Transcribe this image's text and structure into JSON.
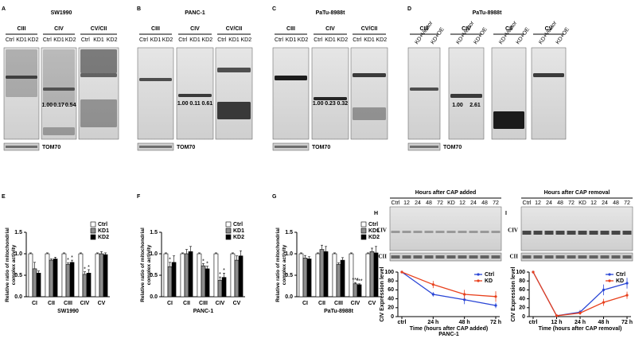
{
  "panels": [
    {
      "letter": "A",
      "title": "SW1990",
      "groups": [
        "CIII",
        "CIV",
        "CV/CII"
      ],
      "lanes": [
        "Ctrl",
        "KD1",
        "KD2"
      ],
      "ratios": [
        "1.00",
        "0.17",
        "0.54"
      ],
      "loading": "TOM70"
    },
    {
      "letter": "B",
      "title": "PANC-1",
      "groups": [
        "CIII",
        "CIV",
        "CV/CII"
      ],
      "lanes": [
        "Ctrl",
        "KD1",
        "KD2"
      ],
      "ratios": [
        "1.00",
        "0.11",
        "0.61"
      ],
      "loading": "TOM70"
    },
    {
      "letter": "C",
      "title": "PaTu-8988t",
      "groups": [
        "CIII",
        "CIV",
        "CV/CII"
      ],
      "lanes": [
        "Ctrl",
        "KD1",
        "KD2"
      ],
      "ratios": [
        "1.00",
        "0.23",
        "0.32"
      ],
      "loading": "TOM70"
    },
    {
      "letter": "D",
      "title": "PaTu-8988t",
      "groups": [
        "CIII",
        "CIV",
        "CII",
        "CV"
      ],
      "lanes": [
        "KD+Vector",
        "KD+OE"
      ],
      "ratios": [
        "1.00",
        "2.61"
      ],
      "loading": "TOM70"
    }
  ],
  "gels": [
    {
      "letter": "H",
      "title": "Hours after CAP added",
      "lanes": [
        "Ctrl",
        "12",
        "24",
        "48",
        "72",
        "KD",
        "12",
        "24",
        "48",
        "72"
      ],
      "bands": [
        "CIV",
        "CII"
      ]
    },
    {
      "letter": "I",
      "title": "Hours after CAP removal",
      "lanes": [
        "Ctrl",
        "12",
        "24",
        "48",
        "72",
        "KD",
        "12",
        "24",
        "48",
        "72"
      ],
      "bands": [
        "CIV",
        "CII"
      ]
    }
  ],
  "chart_data": [
    {
      "type": "bar",
      "letter": "E",
      "ylabel": "Relative ratio of mitochondrial complex activity",
      "xlabel": "SW1990",
      "categories": [
        "CI",
        "CII",
        "CIII",
        "CIV",
        "CV"
      ],
      "series": [
        {
          "name": "Ctrl",
          "color": "#ffffff",
          "values": [
            1.0,
            1.0,
            1.0,
            1.0,
            1.0
          ],
          "errors": [
            0.02,
            0.02,
            0.02,
            0.02,
            0.02
          ],
          "markers": [
            null,
            null,
            null,
            null,
            null
          ]
        },
        {
          "name": "KD1",
          "color": "#8c8c8c",
          "values": [
            0.65,
            0.85,
            0.75,
            0.52,
            1.0
          ],
          "errors": [
            0.15,
            0.03,
            0.04,
            0.06,
            0.05
          ],
          "markers": [
            null,
            null,
            "*",
            "*",
            null
          ]
        },
        {
          "name": "KD2",
          "color": "#000000",
          "values": [
            0.55,
            0.88,
            0.8,
            0.55,
            0.98
          ],
          "errors": [
            0.05,
            0.04,
            0.05,
            0.08,
            0.04
          ],
          "markers": [
            null,
            null,
            "*",
            "*",
            null
          ]
        }
      ],
      "ylim": [
        0,
        1.5
      ],
      "yticks": [
        {
          "value": 0,
          "label": "0.0"
        },
        0.5,
        {
          "value": 1,
          "label": "1.0"
        },
        1.5
      ]
    },
    {
      "type": "bar",
      "letter": "F",
      "ylabel": "Relative ratio of mitochondrial complex activity",
      "xlabel": "PANC-1",
      "categories": [
        "CI",
        "CII",
        "CIII",
        "CIV",
        "CV"
      ],
      "series": [
        {
          "name": "Ctrl",
          "color": "#ffffff",
          "values": [
            1.0,
            1.0,
            1.0,
            1.0,
            1.0
          ],
          "errors": [
            0.02,
            0.02,
            0.02,
            0.02,
            0.02
          ],
          "markers": [
            null,
            null,
            null,
            null,
            null
          ]
        },
        {
          "name": "KD1",
          "color": "#8c8c8c",
          "values": [
            0.7,
            1.0,
            0.72,
            0.38,
            0.85
          ],
          "errors": [
            0.1,
            0.1,
            0.05,
            0.08,
            0.1
          ],
          "markers": [
            "*",
            null,
            "*",
            "*",
            null
          ]
        },
        {
          "name": "KD2",
          "color": "#000000",
          "values": [
            0.8,
            1.05,
            0.65,
            0.45,
            0.95
          ],
          "errors": [
            0.15,
            0.12,
            0.06,
            0.1,
            0.12
          ],
          "markers": [
            null,
            null,
            "*",
            "*",
            null
          ]
        }
      ],
      "ylim": [
        0,
        1.5
      ],
      "yticks": [
        {
          "value": 0,
          "label": "0.0"
        },
        0.5,
        {
          "value": 1,
          "label": "1.0"
        },
        1.5
      ]
    },
    {
      "type": "bar",
      "letter": "G",
      "ylabel": "Relative ratio of mitochondrial complex activity",
      "xlabel": "PaTu-8988t",
      "categories": [
        "CI",
        "CII",
        "CIII",
        "CIV",
        "CV"
      ],
      "series": [
        {
          "name": "Ctrl",
          "color": "#ffffff",
          "values": [
            1.0,
            1.0,
            1.0,
            1.0,
            1.0
          ],
          "errors": [
            0.02,
            0.02,
            0.02,
            0.02,
            0.02
          ],
          "markers": [
            null,
            null,
            null,
            null,
            null
          ]
        },
        {
          "name": "KD1",
          "color": "#8c8c8c",
          "values": [
            0.9,
            1.1,
            0.75,
            0.3,
            1.05
          ],
          "errors": [
            0.06,
            0.1,
            0.04,
            0.03,
            0.08
          ],
          "markers": [
            null,
            null,
            null,
            "***",
            null
          ]
        },
        {
          "name": "KD2",
          "color": "#000000",
          "values": [
            0.88,
            1.05,
            0.85,
            0.28,
            1.02
          ],
          "errors": [
            0.05,
            0.12,
            0.06,
            0.02,
            0.15
          ],
          "markers": [
            null,
            null,
            null,
            "***",
            null
          ]
        }
      ],
      "ylim": [
        0,
        1.5
      ],
      "yticks": [
        {
          "value": 0,
          "label": "0.0"
        },
        0.5,
        {
          "value": 1,
          "label": "1.0"
        },
        1.5
      ]
    },
    {
      "type": "line",
      "ylabel": "CIV Expression level",
      "xlabel": "Time (hours after CAP added)",
      "subtitle": "PANC-1",
      "categories": [
        "ctrl",
        "24 h",
        "48 h",
        "72 h"
      ],
      "series": [
        {
          "name": "Ctrl",
          "color": "#2a46d6",
          "values": [
            100,
            50,
            38,
            25
          ],
          "errors": [
            0,
            5,
            10,
            6
          ]
        },
        {
          "name": "KD",
          "color": "#e8401c",
          "values": [
            100,
            72,
            50,
            45
          ],
          "errors": [
            0,
            8,
            10,
            12
          ]
        }
      ],
      "ylim": [
        0,
        100
      ],
      "yticks": [
        0,
        20,
        40,
        60,
        80,
        100
      ]
    },
    {
      "type": "line",
      "ylabel": "CIV Expression level",
      "xlabel": "Time (hours after CAP removal)",
      "categories": [
        "ctrl",
        "12 h",
        "24 h",
        "48 h",
        "72 h"
      ],
      "series": [
        {
          "name": "Ctrl",
          "color": "#2a46d6",
          "values": [
            100,
            2,
            10,
            60,
            75
          ],
          "errors": [
            0,
            2,
            5,
            12,
            12
          ]
        },
        {
          "name": "KD",
          "color": "#e8401c",
          "values": [
            100,
            2,
            8,
            32,
            48
          ],
          "errors": [
            0,
            2,
            4,
            8,
            8
          ]
        }
      ],
      "ylim": [
        0,
        100
      ],
      "yticks": [
        0,
        20,
        40,
        60,
        80,
        100
      ]
    }
  ]
}
